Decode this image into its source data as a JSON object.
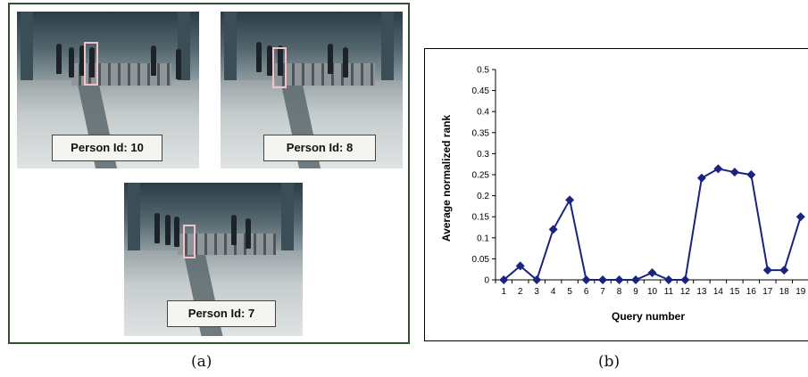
{
  "panel_a": {
    "caption": "(a)",
    "frames": [
      {
        "label": "Person Id: 10"
      },
      {
        "label": "Person Id: 8"
      },
      {
        "label": "Person Id: 7"
      }
    ]
  },
  "panel_b": {
    "caption": "(b)"
  },
  "chart_data": {
    "type": "line",
    "title": "",
    "xlabel": "Query number",
    "ylabel": "Average normalized rank",
    "categories": [
      "1",
      "2",
      "3",
      "4",
      "5",
      "6",
      "7",
      "8",
      "9",
      "10",
      "11",
      "12",
      "13",
      "14",
      "15",
      "16",
      "17",
      "18",
      "19"
    ],
    "series": [
      {
        "values": [
          0,
          0.033,
          0,
          0.12,
          0.19,
          0,
          0,
          0,
          0,
          0.017,
          0,
          0,
          0.242,
          0.264,
          0.256,
          0.25,
          0.023,
          0.023,
          0.15
        ]
      }
    ],
    "ylim": [
      0,
      0.5
    ],
    "yticks": [
      "0",
      "0.05",
      "0.1",
      "0.15",
      "0.2",
      "0.25",
      "0.3",
      "0.35",
      "0.4",
      "0.45",
      "0.5"
    ],
    "grid": false,
    "legend": "none",
    "line_color": "#1a237e",
    "marker": "diamond"
  }
}
